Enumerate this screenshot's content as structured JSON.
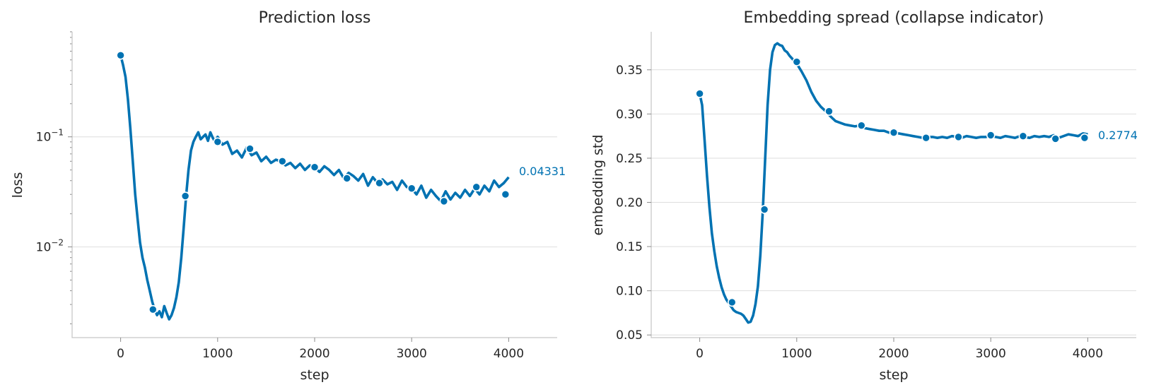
{
  "chart_data": [
    {
      "type": "line",
      "title": "Prediction loss",
      "xlabel": "step",
      "ylabel": "loss",
      "yscale": "log",
      "xlim": [
        -500,
        4500
      ],
      "ylim": [
        0.0015,
        0.9
      ],
      "xticks": [
        0,
        1000,
        2000,
        3000,
        4000
      ],
      "yticks": [
        0.01,
        0.1
      ],
      "ytick_labels": [
        {
          "base": "10",
          "exp": "−2"
        },
        {
          "base": "10",
          "exp": "−1"
        }
      ],
      "grid": "horizontal",
      "color": "#0072b2",
      "end_label": "0.04331",
      "series": [
        {
          "x": [
            0,
            25,
            50,
            75,
            100,
            125,
            150,
            175,
            200,
            225,
            250,
            275,
            300,
            325,
            350,
            375,
            400,
            425,
            450,
            475,
            500,
            525,
            550,
            575,
            600,
            625,
            650,
            675,
            700,
            725,
            750,
            775,
            800,
            825,
            850,
            875,
            900,
            925,
            950,
            975,
            1000,
            1050,
            1100,
            1150,
            1200,
            1250,
            1300,
            1350,
            1400,
            1450,
            1500,
            1550,
            1600,
            1650,
            1700,
            1750,
            1800,
            1850,
            1900,
            1950,
            2000,
            2050,
            2100,
            2150,
            2200,
            2250,
            2300,
            2350,
            2400,
            2450,
            2500,
            2550,
            2600,
            2650,
            2700,
            2750,
            2800,
            2850,
            2900,
            2950,
            3000,
            3050,
            3100,
            3150,
            3200,
            3250,
            3300,
            3350,
            3400,
            3450,
            3500,
            3550,
            3600,
            3650,
            3700,
            3750,
            3800,
            3850,
            3900,
            3950,
            4000
          ],
          "y": [
            0.55,
            0.45,
            0.35,
            0.22,
            0.12,
            0.06,
            0.03,
            0.018,
            0.011,
            0.008,
            0.0065,
            0.005,
            0.004,
            0.0032,
            0.0027,
            0.0024,
            0.0026,
            0.0023,
            0.0029,
            0.0025,
            0.0022,
            0.0024,
            0.0028,
            0.0035,
            0.0048,
            0.008,
            0.015,
            0.029,
            0.05,
            0.075,
            0.09,
            0.1,
            0.11,
            0.095,
            0.1,
            0.105,
            0.092,
            0.11,
            0.098,
            0.09,
            0.1,
            0.085,
            0.09,
            0.07,
            0.075,
            0.065,
            0.08,
            0.068,
            0.072,
            0.06,
            0.066,
            0.058,
            0.062,
            0.06,
            0.055,
            0.058,
            0.052,
            0.057,
            0.05,
            0.055,
            0.053,
            0.048,
            0.054,
            0.05,
            0.045,
            0.05,
            0.042,
            0.047,
            0.044,
            0.04,
            0.046,
            0.036,
            0.043,
            0.038,
            0.041,
            0.037,
            0.039,
            0.033,
            0.04,
            0.035,
            0.034,
            0.03,
            0.036,
            0.028,
            0.033,
            0.029,
            0.026,
            0.032,
            0.027,
            0.031,
            0.028,
            0.033,
            0.029,
            0.034,
            0.03,
            0.036,
            0.032,
            0.04,
            0.035,
            0.038,
            0.043
          ],
          "markers_x": [
            0,
            333,
            667,
            1000,
            1333,
            1667,
            2000,
            2333,
            2667,
            3000,
            3333,
            3667,
            3967
          ],
          "markers_y": [
            0.55,
            0.0027,
            0.029,
            0.09,
            0.078,
            0.06,
            0.053,
            0.042,
            0.038,
            0.034,
            0.026,
            0.035,
            0.03
          ]
        }
      ]
    },
    {
      "type": "line",
      "title": "Embedding spread (collapse indicator)",
      "xlabel": "step",
      "ylabel": "embedding std",
      "yscale": "linear",
      "xlim": [
        -500,
        4500
      ],
      "ylim": [
        0.047,
        0.393
      ],
      "xticks": [
        0,
        1000,
        2000,
        3000,
        4000
      ],
      "yticks": [
        0.05,
        0.1,
        0.15,
        0.2,
        0.25,
        0.3,
        0.35
      ],
      "ytick_labels": [
        "0.05",
        "0.10",
        "0.15",
        "0.20",
        "0.25",
        "0.30",
        "0.35"
      ],
      "grid": "horizontal",
      "color": "#0072b2",
      "end_label": "0.2774",
      "series": [
        {
          "x": [
            0,
            25,
            50,
            75,
            100,
            125,
            150,
            175,
            200,
            225,
            250,
            275,
            300,
            325,
            350,
            375,
            400,
            425,
            450,
            475,
            500,
            525,
            550,
            575,
            600,
            625,
            650,
            675,
            700,
            725,
            750,
            775,
            800,
            825,
            850,
            875,
            900,
            925,
            950,
            975,
            1000,
            1050,
            1100,
            1150,
            1200,
            1250,
            1300,
            1350,
            1400,
            1450,
            1500,
            1550,
            1600,
            1650,
            1700,
            1750,
            1800,
            1850,
            1900,
            1950,
            2000,
            2050,
            2100,
            2150,
            2200,
            2250,
            2300,
            2350,
            2400,
            2450,
            2500,
            2550,
            2600,
            2650,
            2700,
            2750,
            2800,
            2850,
            2900,
            2950,
            3000,
            3050,
            3100,
            3150,
            3200,
            3250,
            3300,
            3350,
            3400,
            3450,
            3500,
            3550,
            3600,
            3650,
            3700,
            3750,
            3800,
            3850,
            3900,
            3950,
            4000
          ],
          "y": [
            0.323,
            0.31,
            0.27,
            0.23,
            0.195,
            0.165,
            0.145,
            0.128,
            0.115,
            0.104,
            0.096,
            0.09,
            0.086,
            0.082,
            0.078,
            0.076,
            0.075,
            0.074,
            0.072,
            0.068,
            0.064,
            0.065,
            0.072,
            0.085,
            0.105,
            0.14,
            0.19,
            0.25,
            0.31,
            0.35,
            0.37,
            0.378,
            0.38,
            0.378,
            0.377,
            0.372,
            0.37,
            0.366,
            0.363,
            0.36,
            0.357,
            0.348,
            0.338,
            0.325,
            0.315,
            0.308,
            0.303,
            0.297,
            0.292,
            0.29,
            0.288,
            0.287,
            0.286,
            0.287,
            0.284,
            0.283,
            0.282,
            0.281,
            0.281,
            0.279,
            0.279,
            0.278,
            0.277,
            0.276,
            0.275,
            0.274,
            0.273,
            0.274,
            0.274,
            0.273,
            0.274,
            0.273,
            0.275,
            0.274,
            0.273,
            0.275,
            0.274,
            0.273,
            0.274,
            0.274,
            0.275,
            0.274,
            0.273,
            0.275,
            0.274,
            0.273,
            0.275,
            0.274,
            0.273,
            0.275,
            0.274,
            0.275,
            0.274,
            0.276,
            0.273,
            0.275,
            0.277,
            0.276,
            0.275,
            0.278,
            0.277
          ],
          "markers_x": [
            0,
            333,
            667,
            1000,
            1333,
            1667,
            2000,
            2333,
            2667,
            3000,
            3333,
            3667,
            3967
          ],
          "markers_y": [
            0.323,
            0.087,
            0.192,
            0.359,
            0.303,
            0.287,
            0.279,
            0.273,
            0.274,
            0.276,
            0.275,
            0.272,
            0.273
          ]
        }
      ]
    }
  ]
}
